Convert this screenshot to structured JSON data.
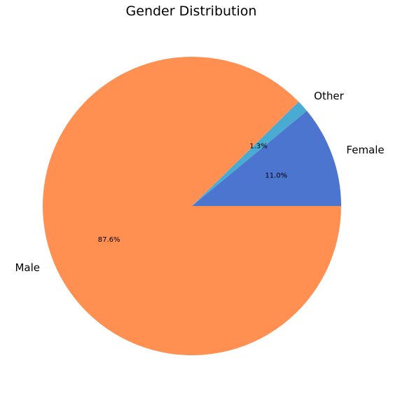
{
  "chart_data": {
    "type": "pie",
    "title": "Gender Distribution",
    "slices": [
      {
        "label": "Female",
        "value": 11.0,
        "pct_label": "11.0%",
        "color": "#4c75cf"
      },
      {
        "label": "Other",
        "value": 1.3,
        "pct_label": "1.3%",
        "color": "#4aabd2"
      },
      {
        "label": "Male",
        "value": 87.6,
        "pct_label": "87.6%",
        "color": "#ff9052"
      }
    ],
    "start_angle_deg": 0,
    "direction": "counterclockwise",
    "legend": "none"
  }
}
